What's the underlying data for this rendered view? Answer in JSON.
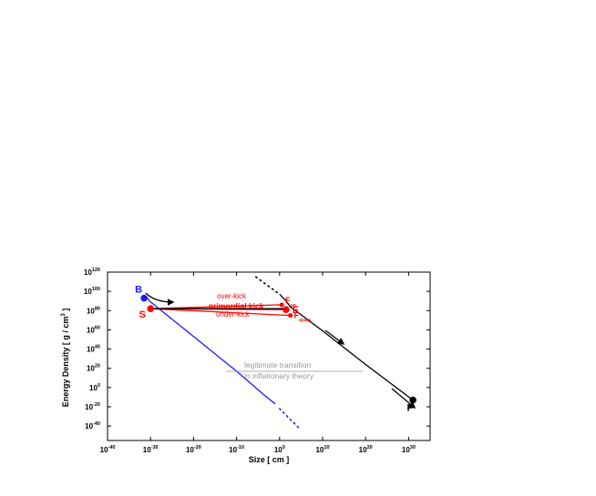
{
  "chart_data": {
    "type": "line",
    "xlabel": "Size [ cm ]",
    "ylabel": "Energy Density [ g / cm³ ]",
    "x_scale": "log10",
    "y_scale": "log10",
    "xlim_exp": [
      -40,
      35
    ],
    "ylim_exp": [
      -55,
      120
    ],
    "x_tick_exps": [
      -40,
      -30,
      -20,
      -10,
      0,
      10,
      20,
      30
    ],
    "y_tick_exps": [
      -40,
      -20,
      0,
      20,
      40,
      60,
      80,
      100,
      120
    ],
    "tick_base": "10",
    "x_axis_title_parts": [
      "Size [ cm ]"
    ],
    "y_axis_title_parts": [
      "Energy Density [ g / cm",
      "3",
      " ]"
    ],
    "series": [
      {
        "color": "#1a1aff",
        "style": "solid",
        "points": [
          [
            -30.8,
            93
          ],
          [
            -30,
            89
          ],
          [
            -20,
            53
          ],
          [
            -10,
            17
          ],
          [
            -3,
            -10
          ],
          [
            -1,
            -17
          ]
        ]
      },
      {
        "color": "#1a1aff",
        "style": "dotted",
        "points": [
          [
            0,
            -22
          ],
          [
            4.5,
            -42
          ]
        ]
      },
      {
        "color": "#000000",
        "style": "dotted",
        "points": [
          [
            -5.5,
            115
          ],
          [
            0,
            97
          ]
        ]
      },
      {
        "color": "#000000",
        "style": "solid",
        "points": [
          [
            0,
            97
          ],
          [
            1.5,
            90
          ],
          [
            2.5,
            84
          ],
          [
            10,
            59
          ],
          [
            20,
            24
          ],
          [
            31,
            -13
          ]
        ]
      },
      {
        "color": "#ff0000",
        "style": "solid",
        "points": [
          [
            -30,
            82
          ],
          [
            0.5,
            86
          ]
        ]
      },
      {
        "color": "#ff0000",
        "style": "solid",
        "points": [
          [
            -30,
            82
          ],
          [
            1.5,
            81
          ]
        ]
      },
      {
        "color": "#ff0000",
        "style": "solid",
        "points": [
          [
            -30,
            82
          ],
          [
            2.5,
            75
          ]
        ]
      },
      {
        "color": "#000000",
        "style": "solid",
        "points": [
          [
            -30,
            82
          ],
          [
            1.5,
            82
          ]
        ]
      }
    ],
    "points": [
      {
        "label": "B",
        "x": -31.5,
        "y": 93,
        "color": "#1a1aff"
      },
      {
        "label": "S",
        "x": -30,
        "y": 82,
        "color": "#ff0000"
      },
      {
        "label": "F",
        "x": 1.5,
        "y": 81,
        "color": "#ff0000"
      },
      {
        "label": "F",
        "sub": "up",
        "x": 0.5,
        "y": 86,
        "color": "#ff0000"
      },
      {
        "label": "F",
        "sub": "down",
        "x": 2.5,
        "y": 75,
        "color": "#ff0000"
      },
      {
        "label": "P",
        "x": 31,
        "y": -13,
        "color": "#000000"
      }
    ],
    "annotations": [
      {
        "text": "over-kick",
        "color": "#ff0000"
      },
      {
        "text": "primordial kick",
        "color": "#ff0000"
      },
      {
        "text": "under-kick",
        "color": "#ff0000"
      },
      {
        "text": "legitimate  transition",
        "color": "#999999"
      },
      {
        "text": "in  inflationary  theory",
        "color": "#999999"
      }
    ]
  }
}
